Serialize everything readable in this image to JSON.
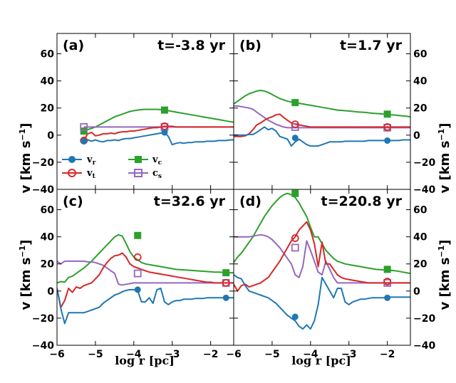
{
  "chart_data": {
    "type": "line",
    "xlabel": "log r [pc]",
    "ylabel_left": "v [km s",
    "ylabel_right": "v [km s",
    "ylabel_exp": "−1",
    "ylabel_close": "]",
    "xlim": [
      -6,
      -1.4
    ],
    "ylim": [
      -40,
      75
    ],
    "xticks": [
      -6,
      -5,
      -4,
      -3,
      -2
    ],
    "xtick_labels": [
      "−6",
      "−5",
      "−4",
      "−3",
      "−2"
    ],
    "yticks": [
      -40,
      -20,
      0,
      20,
      40,
      60
    ],
    "ytick_labels": [
      "−40",
      "−20",
      "0",
      "20",
      "40",
      "60"
    ],
    "colors": {
      "vr": "#1f77b4",
      "vt": "#d62728",
      "vc": "#2ca02c",
      "cs": "#9467bd"
    },
    "legend": {
      "location": "lower-left of panel (a)",
      "entries": [
        {
          "key": "vr",
          "main": "v",
          "sub": "r"
        },
        {
          "key": "vc",
          "main": "v",
          "sub": "c"
        },
        {
          "key": "vt",
          "main": "v",
          "sub": "t"
        },
        {
          "key": "cs",
          "main": "c",
          "sub": "s"
        }
      ]
    },
    "panels": [
      {
        "label": "(a)",
        "title": "t=-3.8 yr",
        "x": [
          -5.3,
          -5.2,
          -5.1,
          -5.0,
          -4.9,
          -4.8,
          -4.7,
          -4.6,
          -4.5,
          -4.4,
          -4.3,
          -4.2,
          -4.1,
          -4.0,
          -3.9,
          -3.8,
          -3.7,
          -3.6,
          -3.5,
          -3.4,
          -3.3,
          -3.2,
          -3.1,
          -3.0,
          -2.9,
          -2.8,
          -2.7,
          -2.6,
          -2.5,
          -2.4,
          -2.3,
          -2.2,
          -2.1,
          -2.0,
          -1.9,
          -1.8,
          -1.7,
          -1.6,
          -1.5,
          -1.4
        ],
        "series": {
          "vr": [
            -4.5,
            -3.5,
            -4.5,
            -3.5,
            -4.5,
            -5,
            -4,
            -4,
            -3.5,
            -4,
            -3,
            -2.5,
            -2.5,
            -2,
            -1.5,
            -1,
            -0.5,
            0,
            0.5,
            1,
            1.5,
            2,
            -1,
            -7,
            -6,
            -5.5,
            -6,
            -5.5,
            -5.5,
            -5,
            -5,
            -5,
            -4.5,
            -4.5,
            -4.5,
            -4,
            -4,
            -4,
            -3.5,
            -3.5
          ],
          "vt": [
            -4,
            1,
            2,
            -0.5,
            0,
            1,
            1,
            1.5,
            1,
            2,
            2.5,
            2.5,
            3,
            3,
            3.5,
            4,
            4.5,
            5,
            5.5,
            5.5,
            6,
            6.5,
            6.5,
            6.5,
            6,
            6,
            6,
            6,
            6,
            6,
            6,
            6,
            6,
            6,
            6,
            6,
            6,
            6,
            6,
            6
          ],
          "vc": [
            3,
            4,
            5,
            6,
            7.5,
            9,
            10.5,
            12,
            13.5,
            14.5,
            15.5,
            16.5,
            17.5,
            18,
            18.5,
            18.8,
            19,
            19,
            19,
            19,
            18.8,
            18.5,
            18,
            17.5,
            17,
            16.5,
            16,
            15.5,
            15,
            14.5,
            14,
            13.5,
            13,
            12.5,
            12,
            11.5,
            11,
            10.5,
            10,
            9.5
          ],
          "cs": [
            6,
            6,
            6,
            6,
            6,
            6,
            6,
            6,
            6,
            6,
            6,
            6,
            6,
            6,
            6,
            6,
            6,
            6,
            6,
            6,
            6,
            6,
            6,
            6,
            6,
            6,
            6,
            6,
            6,
            6,
            6,
            6,
            6,
            6,
            6,
            6,
            6,
            6,
            6,
            6
          ]
        },
        "markers": {
          "vr": [
            [
              -5.3,
              -4.5
            ],
            [
              -3.2,
              2
            ]
          ],
          "vt": [
            [
              -5.3,
              -4
            ],
            [
              -3.2,
              6.5
            ]
          ],
          "vc": [
            [
              -5.3,
              3
            ],
            [
              -3.2,
              18.5
            ]
          ],
          "cs": [
            [
              -5.3,
              6
            ],
            [
              -3.2,
              6
            ]
          ]
        }
      },
      {
        "label": "(b)",
        "title": "t=1.7 yr",
        "x": [
          -6,
          -5.9,
          -5.8,
          -5.7,
          -5.6,
          -5.5,
          -5.4,
          -5.3,
          -5.2,
          -5.1,
          -5.0,
          -4.9,
          -4.8,
          -4.7,
          -4.6,
          -4.5,
          -4.4,
          -4.3,
          -4.2,
          -4.1,
          -4.0,
          -3.9,
          -3.8,
          -3.7,
          -3.6,
          -3.5,
          -3.4,
          -3.3,
          -3.2,
          -3.1,
          -3.0,
          -2.9,
          -2.8,
          -2.7,
          -2.6,
          -2.5,
          -2.4,
          -2.3,
          -2.2,
          -2.1,
          -2.0,
          -1.9,
          -1.8,
          -1.7,
          -1.6,
          -1.5,
          -1.4
        ],
        "series": {
          "vr": [
            0,
            0,
            0,
            0,
            0.5,
            0.5,
            2,
            4,
            6,
            4,
            5,
            3,
            -1,
            -2,
            -3,
            -8,
            -5,
            -3,
            -5,
            -7,
            -8,
            -8,
            -8,
            -7,
            -6,
            -5,
            -5,
            -5,
            -5,
            -4.5,
            -4.5,
            -4.5,
            -4.5,
            -4.5,
            -4.5,
            -4,
            -4,
            -4,
            -4,
            -4,
            -4,
            -4,
            -4,
            -4,
            -3.5,
            -3.5,
            -3.5
          ],
          "vt": [
            -1,
            -1,
            -1,
            -0.5,
            1,
            4,
            7.5,
            9,
            11,
            12.5,
            13.5,
            15,
            15.5,
            13,
            11,
            9,
            8,
            7.5,
            7,
            6.5,
            6,
            6,
            6,
            6,
            6,
            6,
            6,
            6,
            6,
            6,
            6,
            6,
            6,
            6,
            6,
            6,
            6,
            6,
            6,
            6,
            6,
            6,
            6,
            6,
            6,
            6,
            6
          ],
          "vc": [
            23,
            25,
            27,
            29,
            30.5,
            31.5,
            32.5,
            33,
            32.5,
            31.5,
            30,
            28.5,
            27,
            26,
            25,
            24.5,
            24,
            23.5,
            23,
            22.5,
            22,
            21.5,
            21,
            20.5,
            20,
            19.5,
            19,
            18.5,
            18.3,
            18,
            17.8,
            17.5,
            17.2,
            17,
            16.8,
            16.5,
            16.2,
            16,
            15.8,
            15.5,
            15.2,
            15,
            14.8,
            14.5,
            14.2,
            14,
            13.5
          ],
          "cs": [
            21.5,
            21.5,
            21,
            20.5,
            20,
            19,
            17,
            15,
            13,
            11,
            9.5,
            8,
            7,
            6,
            5.5,
            5.5,
            5.5,
            5.5,
            5.5,
            5.5,
            5.5,
            5.5,
            5.5,
            5.5,
            5.5,
            5.5,
            5.5,
            5.5,
            5.5,
            5.5,
            5.5,
            5.5,
            5.5,
            5.5,
            5.5,
            5.5,
            5.5,
            5.5,
            5.5,
            5.5,
            5.5,
            5.5,
            5.5,
            5.5,
            5.5,
            5.5,
            5.5
          ]
        },
        "markers": {
          "vr": [
            [
              -4.4,
              -2
            ],
            [
              -2,
              -4
            ]
          ],
          "vt": [
            [
              -4.4,
              8
            ],
            [
              -2,
              6
            ]
          ],
          "vc": [
            [
              -4.4,
              24
            ],
            [
              -2,
              15.5
            ]
          ],
          "cs": [
            [
              -4.4,
              6
            ],
            [
              -2,
              5.5
            ]
          ]
        }
      },
      {
        "label": "(c)",
        "title": "t=32.6 yr",
        "x": [
          -6,
          -5.9,
          -5.8,
          -5.7,
          -5.6,
          -5.5,
          -5.4,
          -5.3,
          -5.2,
          -5.1,
          -5.0,
          -4.9,
          -4.8,
          -4.7,
          -4.6,
          -4.5,
          -4.4,
          -4.3,
          -4.2,
          -4.1,
          -4.0,
          -3.9,
          -3.8,
          -3.7,
          -3.6,
          -3.5,
          -3.4,
          -3.3,
          -3.2,
          -3.1,
          -3.0,
          -2.9,
          -2.8,
          -2.7,
          -2.6,
          -2.5,
          -2.4,
          -2.3,
          -2.2,
          -2.1,
          -2.0,
          -1.9,
          -1.8,
          -1.7,
          -1.6,
          -1.5,
          -1.4
        ],
        "series": {
          "vr": [
            2,
            -13,
            -24,
            -16,
            -16,
            -16,
            -16,
            -16,
            -15,
            -14,
            -13,
            -12,
            -9,
            -7,
            -5,
            -3,
            -2,
            -0.5,
            0.5,
            1,
            1,
            0.5,
            -8,
            -8,
            -5,
            -9,
            1,
            2,
            -8,
            -10,
            -8,
            -7,
            -7,
            -6,
            -6,
            -6,
            -5.5,
            -5.5,
            -5.5,
            -5,
            -5,
            -5,
            -5,
            -5,
            -5,
            -5,
            -5
          ],
          "vt": [
            2,
            -12,
            -7,
            2,
            -1,
            3,
            2,
            4,
            5,
            6,
            9,
            12,
            17,
            21,
            24,
            26,
            26.5,
            28,
            25,
            20,
            18,
            17,
            16,
            15,
            14,
            13.5,
            13,
            12.5,
            12,
            11.5,
            11,
            10.5,
            10,
            9.5,
            9,
            8.5,
            8,
            7.5,
            7,
            6.5,
            6.5,
            6,
            6,
            6,
            6,
            6,
            6
          ],
          "vc": [
            6,
            7,
            6.5,
            10,
            11,
            13,
            15,
            17,
            19.5,
            22,
            25,
            28,
            31,
            34,
            37,
            40,
            41.5,
            40.5,
            35,
            29,
            25,
            23,
            21,
            20,
            19.5,
            19,
            18.5,
            18,
            17.5,
            17,
            16.5,
            16,
            15.8,
            15.6,
            15.4,
            15.2,
            15,
            14.8,
            14.6,
            14.4,
            14.2,
            14,
            14,
            13.8,
            13.6,
            13.5,
            13.5
          ],
          "cs": [
            22,
            20,
            22,
            22,
            22,
            22,
            22,
            22,
            21.5,
            21.5,
            21,
            20,
            19,
            17,
            15,
            13,
            5,
            4.5,
            5,
            5.5,
            6,
            6,
            6,
            6,
            6,
            6,
            6,
            6,
            6,
            6,
            6,
            6,
            6,
            6,
            6,
            6,
            6,
            6,
            6,
            6,
            6,
            6,
            6,
            6,
            6,
            6,
            6
          ]
        },
        "markers": {
          "vr": [
            [
              -3.9,
              1
            ],
            [
              -1.6,
              -5
            ]
          ],
          "vt": [
            [
              -3.9,
              25
            ],
            [
              -1.6,
              6
            ]
          ],
          "vc": [
            [
              -3.9,
              41
            ],
            [
              -1.6,
              13.5
            ]
          ],
          "cs": [
            [
              -3.9,
              13
            ],
            [
              -1.6,
              6
            ]
          ]
        }
      },
      {
        "label": "(d)",
        "title": "t=220.8 yr",
        "x": [
          -6,
          -5.9,
          -5.8,
          -5.7,
          -5.6,
          -5.5,
          -5.4,
          -5.3,
          -5.2,
          -5.1,
          -5.0,
          -4.9,
          -4.8,
          -4.7,
          -4.6,
          -4.5,
          -4.4,
          -4.3,
          -4.2,
          -4.1,
          -4.0,
          -3.9,
          -3.8,
          -3.7,
          -3.6,
          -3.5,
          -3.4,
          -3.3,
          -3.2,
          -3.1,
          -3.0,
          -2.9,
          -2.8,
          -2.7,
          -2.6,
          -2.5,
          -2.4,
          -2.3,
          -2.2,
          -2.1,
          -2.0,
          -1.9,
          -1.8,
          -1.7,
          -1.6,
          -1.5,
          -1.4
        ],
        "series": {
          "vr": [
            12,
            10,
            9,
            4,
            0,
            -1,
            -2,
            -3,
            -4,
            -5,
            -7,
            -9,
            -12,
            -15,
            -18,
            -20,
            -22,
            -26,
            -28,
            -25,
            -28,
            -22,
            -10,
            10,
            5,
            0,
            -5,
            2,
            2,
            -8,
            -10,
            -8,
            -7,
            -6,
            -6,
            -5.5,
            -5,
            -5,
            -5,
            -5,
            -4.5,
            -4.5,
            -4.5,
            -4.5,
            -4.5,
            -4.5,
            -4.5
          ],
          "vt": [
            5,
            0,
            4,
            5,
            3,
            4,
            5,
            6,
            8,
            10,
            14,
            18,
            22,
            27,
            32,
            37,
            40,
            45,
            48,
            51,
            45,
            35,
            18,
            36,
            20,
            20,
            16,
            12,
            10,
            9,
            8.5,
            8,
            7.5,
            7,
            6.5,
            6,
            6,
            6,
            6,
            6,
            6,
            6,
            6,
            6,
            6,
            6,
            6
          ],
          "vc": [
            21,
            25,
            28,
            32,
            36,
            40,
            45,
            50,
            55,
            59,
            63,
            66,
            69,
            71,
            72,
            71,
            69,
            65,
            60,
            55,
            47,
            40,
            40,
            35,
            30,
            27,
            24,
            22,
            21,
            20,
            19.5,
            19,
            18.5,
            18,
            17.5,
            17,
            16.5,
            16,
            15.8,
            15.6,
            15.4,
            15.2,
            15,
            14.5,
            14,
            13.5,
            13
          ],
          "cs": [
            40,
            40,
            40,
            40,
            40,
            40.5,
            41,
            41.5,
            41,
            40,
            38,
            35,
            32,
            28,
            24,
            20,
            12,
            10,
            18,
            37,
            30,
            22,
            14,
            12,
            22,
            16,
            10,
            6,
            6,
            6,
            6,
            6,
            6,
            6,
            6,
            6,
            6,
            6,
            6,
            6,
            6,
            6,
            6,
            6,
            6,
            6,
            6
          ]
        },
        "markers": {
          "vr": [
            [
              -4.4,
              -19
            ],
            [
              -2,
              -5
            ]
          ],
          "vt": [
            [
              -4.4,
              39
            ],
            [
              -2,
              7
            ]
          ],
          "vc": [
            [
              -4.4,
              72
            ],
            [
              -2,
              16
            ]
          ],
          "cs": [
            [
              -4.4,
              32
            ],
            [
              -2,
              6
            ]
          ]
        }
      }
    ]
  }
}
